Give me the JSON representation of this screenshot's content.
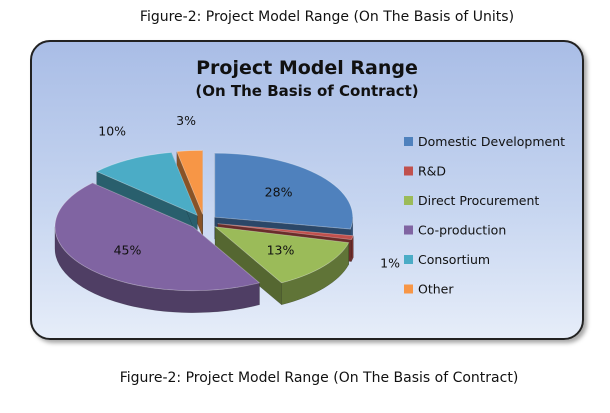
{
  "captions": {
    "top": "Figure-2: Project Model Range (On The Basis of Units)",
    "bottom": "Figure-2: Project Model Range (On The Basis of Contract)"
  },
  "chart_data": {
    "type": "pie",
    "title": "Project Model Range",
    "subtitle": "(On The Basis of Contract)",
    "legend_position": "right",
    "exploded": true,
    "three_d": true,
    "slices": [
      {
        "label": "Domestic Development",
        "value": 28,
        "value_label": "28%",
        "color": "#4f81bd"
      },
      {
        "label": "R&D",
        "value": 1,
        "value_label": "1%",
        "color": "#c0504d"
      },
      {
        "label": "Direct Procurement",
        "value": 13,
        "value_label": "13%",
        "color": "#9bbb59"
      },
      {
        "label": "Co-production",
        "value": 45,
        "value_label": "45%",
        "color": "#8064a2"
      },
      {
        "label": "Consortium",
        "value": 10,
        "value_label": "10%",
        "color": "#4bacc6"
      },
      {
        "label": "Other",
        "value": 3,
        "value_label": "3%",
        "color": "#f79646"
      }
    ]
  }
}
